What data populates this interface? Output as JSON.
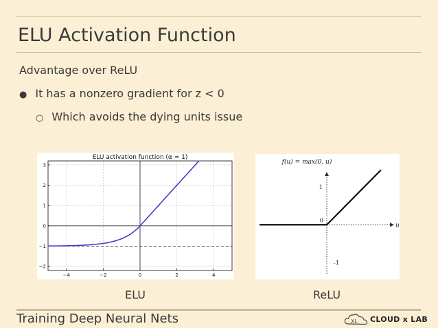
{
  "slide": {
    "title": "ELU Activation Function",
    "subtitle": "Advantage over ReLU",
    "bullets": [
      {
        "marker": "●",
        "text": "It has a nonzero gradient for z < 0"
      },
      {
        "marker": "○",
        "text": "Which avoids the dying units issue"
      }
    ],
    "footer": "Training Deep Neural Nets",
    "logo_text": "CLOUD x LAB"
  },
  "figures": {
    "elu_caption": "ELU",
    "relu_caption": "ReLU"
  },
  "chart_data": [
    {
      "type": "line",
      "title": "ELU activation function (α = 1)",
      "alpha": 1,
      "xlim": [
        -5,
        5
      ],
      "ylim": [
        -2.2,
        3.2
      ],
      "x_ticks": [
        -4,
        -2,
        0,
        2,
        4
      ],
      "y_ticks": [
        -2,
        -1,
        0,
        1,
        2,
        3
      ],
      "x_tick_labels": [
        "−4",
        "−2",
        "0",
        "2",
        "4"
      ],
      "y_tick_labels": [
        "−2",
        "−1",
        "0",
        "1",
        "2",
        "3"
      ],
      "grid": true,
      "asymptote_y": -1,
      "series": [
        {
          "function": "x >= 0 ? x : alpha*(exp(x)-1)",
          "color": "#5b2fd0"
        }
      ]
    },
    {
      "type": "line",
      "title": "f(u) = max(0, u)",
      "xlabel": "u",
      "xlim": [
        -1.8,
        1.8
      ],
      "ylim": [
        -1.3,
        1.4
      ],
      "tick_labels": [
        {
          "label": "1",
          "axis": "y",
          "value": 1
        },
        {
          "label": "0",
          "axis": "origin",
          "value": 0
        },
        {
          "label": "-1",
          "axis": "y",
          "value": -1
        }
      ],
      "series": [
        {
          "x": [
            -1.8,
            0,
            1.45
          ],
          "y": [
            0,
            0,
            1.45
          ],
          "color": "#111111"
        }
      ]
    }
  ]
}
